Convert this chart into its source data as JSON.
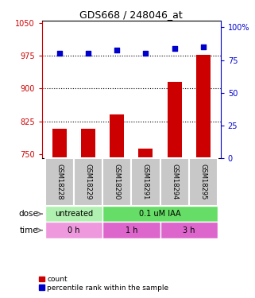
{
  "title": "GDS668 / 248046_at",
  "samples": [
    "GSM18228",
    "GSM18229",
    "GSM18290",
    "GSM18291",
    "GSM18294",
    "GSM18295"
  ],
  "bar_values": [
    808,
    808,
    840,
    762,
    915,
    978
  ],
  "dot_values": [
    80,
    80,
    83,
    80,
    84,
    85
  ],
  "bar_color": "#cc0000",
  "dot_color": "#0000cc",
  "ylim_left": [
    740,
    1055
  ],
  "ylim_right": [
    0,
    105
  ],
  "yticks_left": [
    750,
    825,
    900,
    975,
    1050
  ],
  "yticks_right": [
    0,
    25,
    50,
    75,
    100
  ],
  "yticklabels_right": [
    "0",
    "25",
    "50",
    "75",
    "100%"
  ],
  "hlines": [
    825,
    900,
    975
  ],
  "dose_labels": [
    {
      "label": "untreated",
      "start": 0,
      "end": 2,
      "color": "#b0f0b0"
    },
    {
      "label": "0.1 uM IAA",
      "start": 2,
      "end": 6,
      "color": "#66dd66"
    }
  ],
  "time_labels": [
    {
      "label": "0 h",
      "start": 0,
      "end": 2,
      "color": "#ee99dd"
    },
    {
      "label": "1 h",
      "start": 2,
      "end": 4,
      "color": "#dd66cc"
    },
    {
      "label": "3 h",
      "start": 4,
      "end": 6,
      "color": "#dd66cc"
    }
  ],
  "legend_items": [
    {
      "label": "count",
      "color": "#cc0000"
    },
    {
      "label": "percentile rank within the sample",
      "color": "#0000cc"
    }
  ],
  "left_axis_color": "#cc0000",
  "right_axis_color": "#0000cc",
  "bar_width": 0.5,
  "sample_box_color": "#c8c8c8",
  "n_samples": 6
}
